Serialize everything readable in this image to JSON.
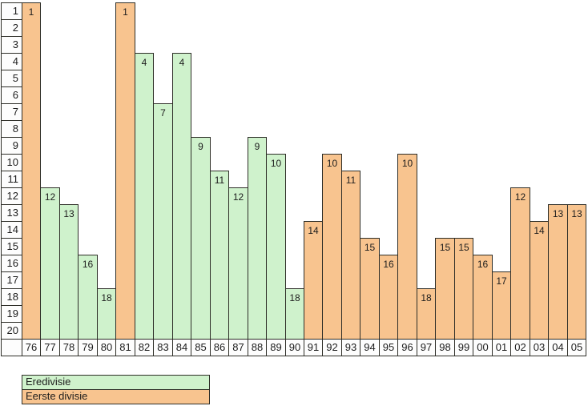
{
  "chart_data": {
    "type": "bar",
    "title": "",
    "description": "League finishing position per season, inverted axis (1 = best) for seasons 1976-2005",
    "colors": {
      "eredivisie": "#CFF2CC",
      "eerste_divisie": "#F8C48F",
      "border": "#2E2E28",
      "background": "#FFFFFF",
      "text": "#1C1C1C"
    },
    "legend": [
      {
        "label": "Eredivisie",
        "key": "eredivisie"
      },
      {
        "label": "Eerste divisie",
        "key": "eerste_divisie"
      }
    ],
    "y_axis": {
      "inverted": true,
      "positions": [
        1,
        2,
        3,
        4,
        5,
        6,
        7,
        8,
        9,
        10,
        11,
        12,
        13,
        14,
        15,
        16,
        17,
        18,
        19,
        20
      ]
    },
    "x_axis": {
      "categories": [
        "76",
        "77",
        "78",
        "79",
        "80",
        "81",
        "82",
        "83",
        "84",
        "85",
        "86",
        "87",
        "88",
        "89",
        "90",
        "91",
        "92",
        "93",
        "94",
        "95",
        "96",
        "97",
        "98",
        "99",
        "00",
        "01",
        "02",
        "03",
        "04",
        "05"
      ]
    },
    "bars": [
      {
        "year": "76",
        "position": 1,
        "division": "eerste_divisie"
      },
      {
        "year": "77",
        "position": 12,
        "division": "eredivisie"
      },
      {
        "year": "78",
        "position": 13,
        "division": "eredivisie"
      },
      {
        "year": "79",
        "position": 16,
        "division": "eredivisie"
      },
      {
        "year": "80",
        "position": 18,
        "division": "eredivisie"
      },
      {
        "year": "81",
        "position": 1,
        "division": "eerste_divisie"
      },
      {
        "year": "82",
        "position": 4,
        "division": "eredivisie"
      },
      {
        "year": "83",
        "position": 7,
        "division": "eredivisie"
      },
      {
        "year": "84",
        "position": 4,
        "division": "eredivisie"
      },
      {
        "year": "85",
        "position": 9,
        "division": "eredivisie"
      },
      {
        "year": "86",
        "position": 11,
        "division": "eredivisie"
      },
      {
        "year": "87",
        "position": 12,
        "division": "eredivisie"
      },
      {
        "year": "88",
        "position": 9,
        "division": "eredivisie"
      },
      {
        "year": "89",
        "position": 10,
        "division": "eredivisie"
      },
      {
        "year": "90",
        "position": 18,
        "division": "eredivisie"
      },
      {
        "year": "91",
        "position": 14,
        "division": "eerste_divisie"
      },
      {
        "year": "92",
        "position": 10,
        "division": "eerste_divisie"
      },
      {
        "year": "93",
        "position": 11,
        "division": "eerste_divisie"
      },
      {
        "year": "94",
        "position": 15,
        "division": "eerste_divisie"
      },
      {
        "year": "95",
        "position": 16,
        "division": "eerste_divisie"
      },
      {
        "year": "96",
        "position": 10,
        "division": "eerste_divisie"
      },
      {
        "year": "97",
        "position": 18,
        "division": "eerste_divisie"
      },
      {
        "year": "98",
        "position": 15,
        "division": "eerste_divisie"
      },
      {
        "year": "99",
        "position": 15,
        "division": "eerste_divisie"
      },
      {
        "year": "00",
        "position": 16,
        "division": "eerste_divisie"
      },
      {
        "year": "01",
        "position": 17,
        "division": "eerste_divisie"
      },
      {
        "year": "02",
        "position": 12,
        "division": "eerste_divisie"
      },
      {
        "year": "03",
        "position": 14,
        "division": "eerste_divisie"
      },
      {
        "year": "04",
        "position": 13,
        "division": "eerste_divisie"
      }
    ],
    "last_bar": {
      "year": "05",
      "position": 13,
      "division": "eerste_divisie"
    }
  }
}
